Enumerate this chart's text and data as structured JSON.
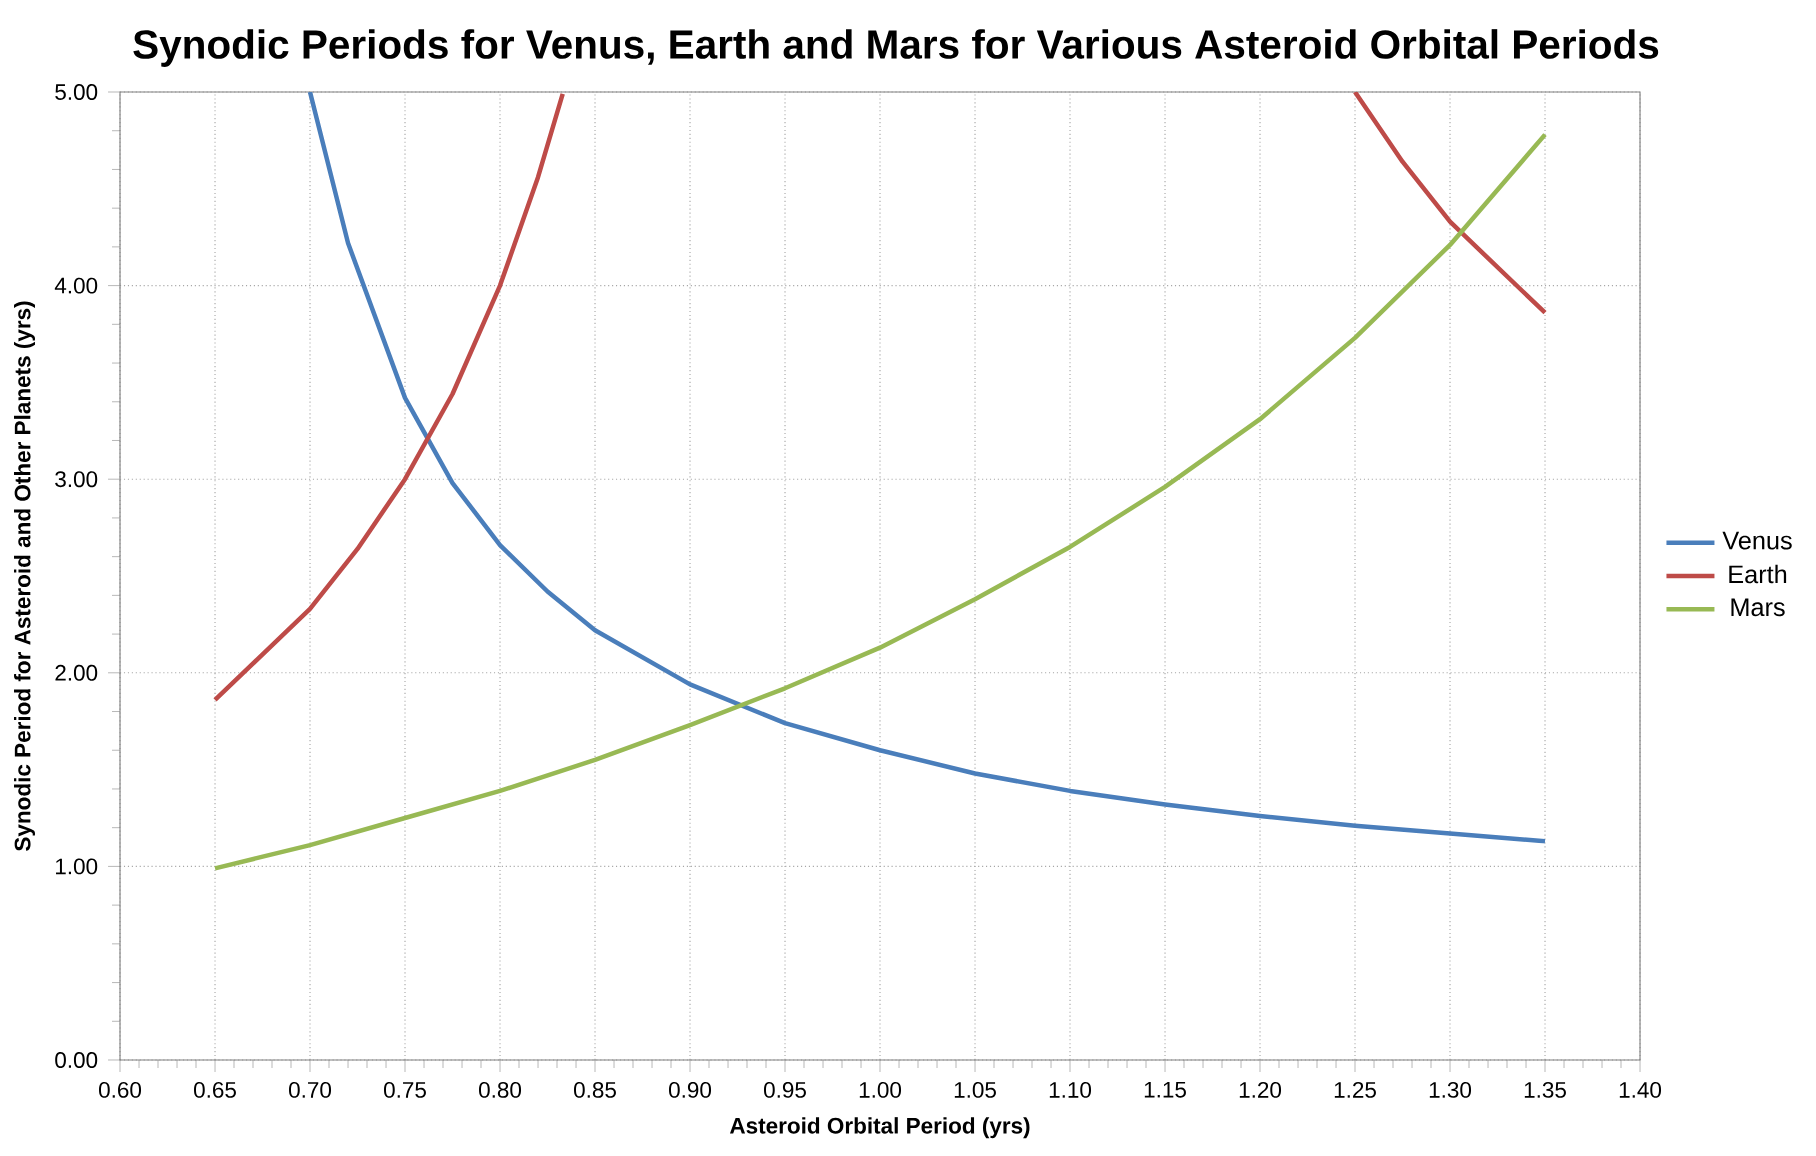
{
  "chart_data": {
    "type": "line",
    "title": "Synodic Periods for Venus, Earth and Mars for Various Asteroid Orbital Periods",
    "xlabel": "Asteroid Orbital Period (yrs)",
    "ylabel": "Synodic Period for Asteroid and Other Planets (yrs)",
    "xlim": [
      0.6,
      1.4
    ],
    "xticks": [
      {
        "value": 0.6,
        "label": "0.60"
      },
      {
        "value": 0.65,
        "label": "0.65"
      },
      {
        "value": 0.7,
        "label": "0.70"
      },
      {
        "value": 0.75,
        "label": "0.75"
      },
      {
        "value": 0.8,
        "label": "0.80"
      },
      {
        "value": 0.85,
        "label": "0.85"
      },
      {
        "value": 0.9,
        "label": "0.90"
      },
      {
        "value": 0.95,
        "label": "0.95"
      },
      {
        "value": 1.0,
        "label": "1.00"
      },
      {
        "value": 1.05,
        "label": "1.05"
      },
      {
        "value": 1.1,
        "label": "1.10"
      },
      {
        "value": 1.15,
        "label": "1.15"
      },
      {
        "value": 1.2,
        "label": "1.20"
      },
      {
        "value": 1.25,
        "label": "1.25"
      },
      {
        "value": 1.3,
        "label": "1.30"
      },
      {
        "value": 1.35,
        "label": "1.35"
      },
      {
        "value": 1.4,
        "label": "1.40"
      }
    ],
    "ylim": [
      0,
      5
    ],
    "yticks": [
      {
        "value": 0,
        "label": "0.00"
      },
      {
        "value": 1,
        "label": "1.00"
      },
      {
        "value": 2,
        "label": "2.00"
      },
      {
        "value": 3,
        "label": "3.00"
      },
      {
        "value": 4,
        "label": "4.00"
      },
      {
        "value": 5,
        "label": "5.00"
      }
    ],
    "grid": true,
    "legend": "right",
    "marker": "none",
    "line_style": "solid",
    "series": [
      {
        "name": "Venus",
        "color": "#4a7ebb",
        "x": [
          0.7,
          0.72,
          0.75,
          0.775,
          0.8,
          0.825,
          0.85,
          0.9,
          0.95,
          1.0,
          1.05,
          1.1,
          1.15,
          1.2,
          1.25,
          1.3,
          1.35
        ],
        "values": [
          5.0,
          4.22,
          3.42,
          2.98,
          2.66,
          2.42,
          2.22,
          1.94,
          1.74,
          1.6,
          1.48,
          1.39,
          1.32,
          1.26,
          1.21,
          1.17,
          1.13
        ]
      },
      {
        "name": "Earth",
        "color": "#be4b48",
        "x": [
          0.65,
          0.7,
          0.725,
          0.75,
          0.775,
          0.8,
          0.82,
          0.833,
          1.0,
          1.25,
          1.275,
          1.3,
          1.35
        ],
        "values": [
          1.86,
          2.33,
          2.64,
          3.0,
          3.44,
          4.0,
          4.56,
          4.99,
          null,
          5.0,
          4.64,
          4.33,
          3.86
        ]
      },
      {
        "name": "Mars",
        "color": "#98b954",
        "x": [
          0.65,
          0.7,
          0.75,
          0.8,
          0.85,
          0.9,
          0.95,
          1.0,
          1.05,
          1.1,
          1.15,
          1.2,
          1.25,
          1.3,
          1.35
        ],
        "values": [
          0.99,
          1.11,
          1.25,
          1.39,
          1.55,
          1.73,
          1.92,
          2.13,
          2.38,
          2.65,
          2.96,
          3.31,
          3.73,
          4.21,
          4.78
        ]
      }
    ]
  }
}
